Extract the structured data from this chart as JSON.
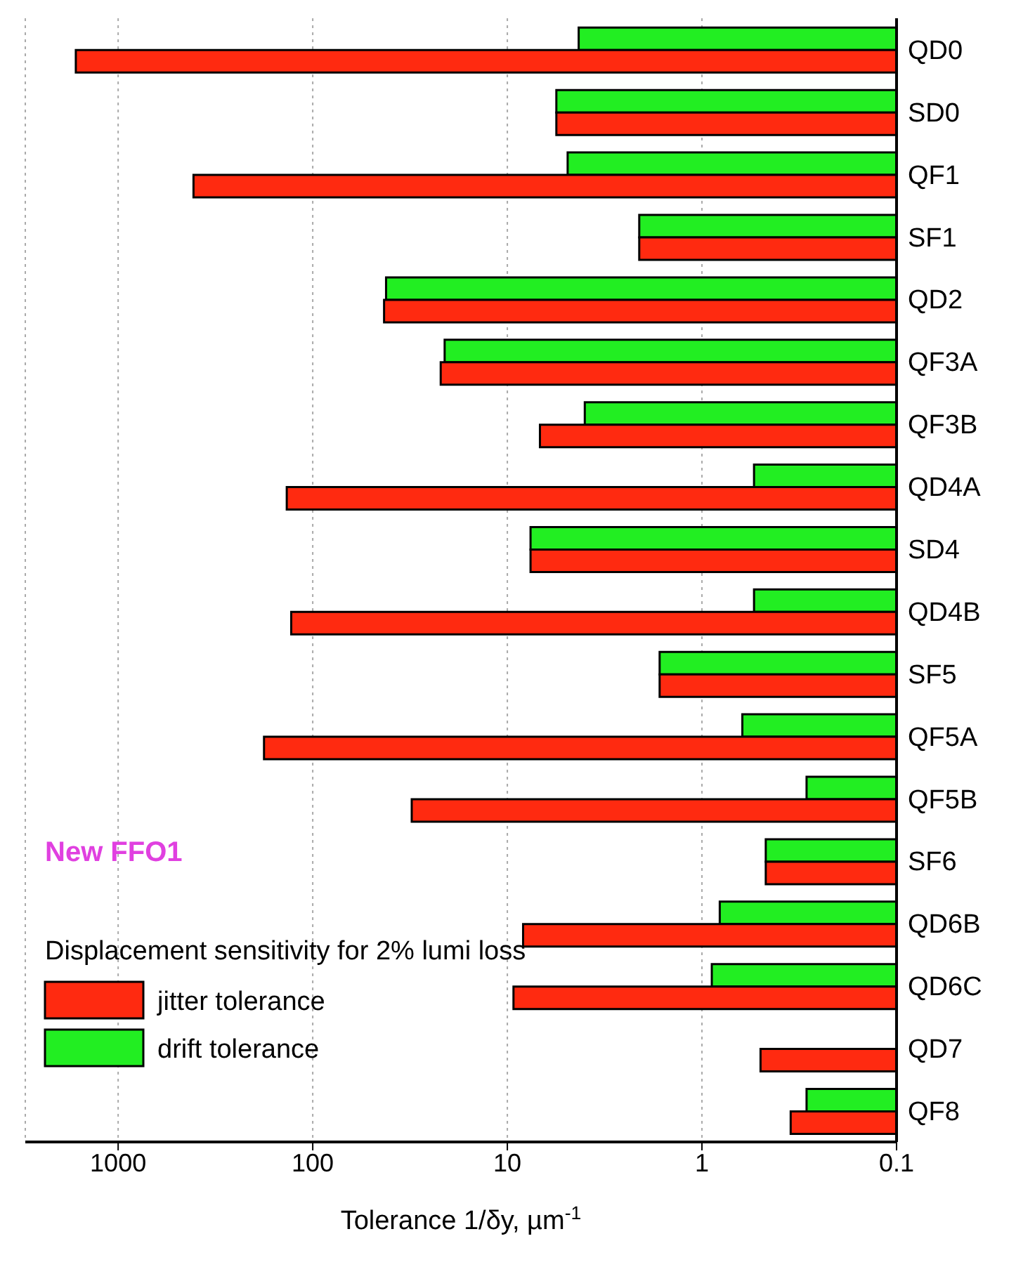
{
  "chart_data": {
    "type": "bar",
    "orientation": "horizontal",
    "legend_title": "Displacement sensitivity for 2% lumi loss",
    "xlabel": "Tolerance 1/δy, µm$^{-1}$",
    "annotations": [
      "New FFO1"
    ],
    "categories": [
      "QD0",
      "SD0",
      "QF1",
      "SF1",
      "QD2",
      "QF3A",
      "QF3B",
      "QD4A",
      "SD4",
      "QD4B",
      "SF5",
      "QF5A",
      "QF5B",
      "SF6",
      "QD6B",
      "QD6C",
      "QD7",
      "QF8"
    ],
    "series": [
      {
        "name": "jitter tolerance",
        "color": "#ff2a10",
        "values": [
          1650,
          5.6,
          410,
          2.1,
          43,
          22,
          6.8,
          136,
          7.6,
          129,
          1.65,
          178,
          31,
          0.47,
          8.3,
          9.3,
          0.5,
          0.35
        ]
      },
      {
        "name": "drift tolerance",
        "color": "#22ee22",
        "values": [
          4.3,
          5.6,
          4.9,
          2.1,
          42,
          21,
          4.0,
          0.54,
          7.6,
          0.54,
          1.65,
          0.62,
          0.29,
          0.47,
          0.81,
          0.89,
          null,
          0.29
        ]
      }
    ],
    "log": "x",
    "xlim": [
      3000,
      0.1
    ],
    "xticks": [
      1000,
      100,
      10,
      1,
      0.1
    ],
    "grid": "x",
    "legend": "bottom left"
  }
}
